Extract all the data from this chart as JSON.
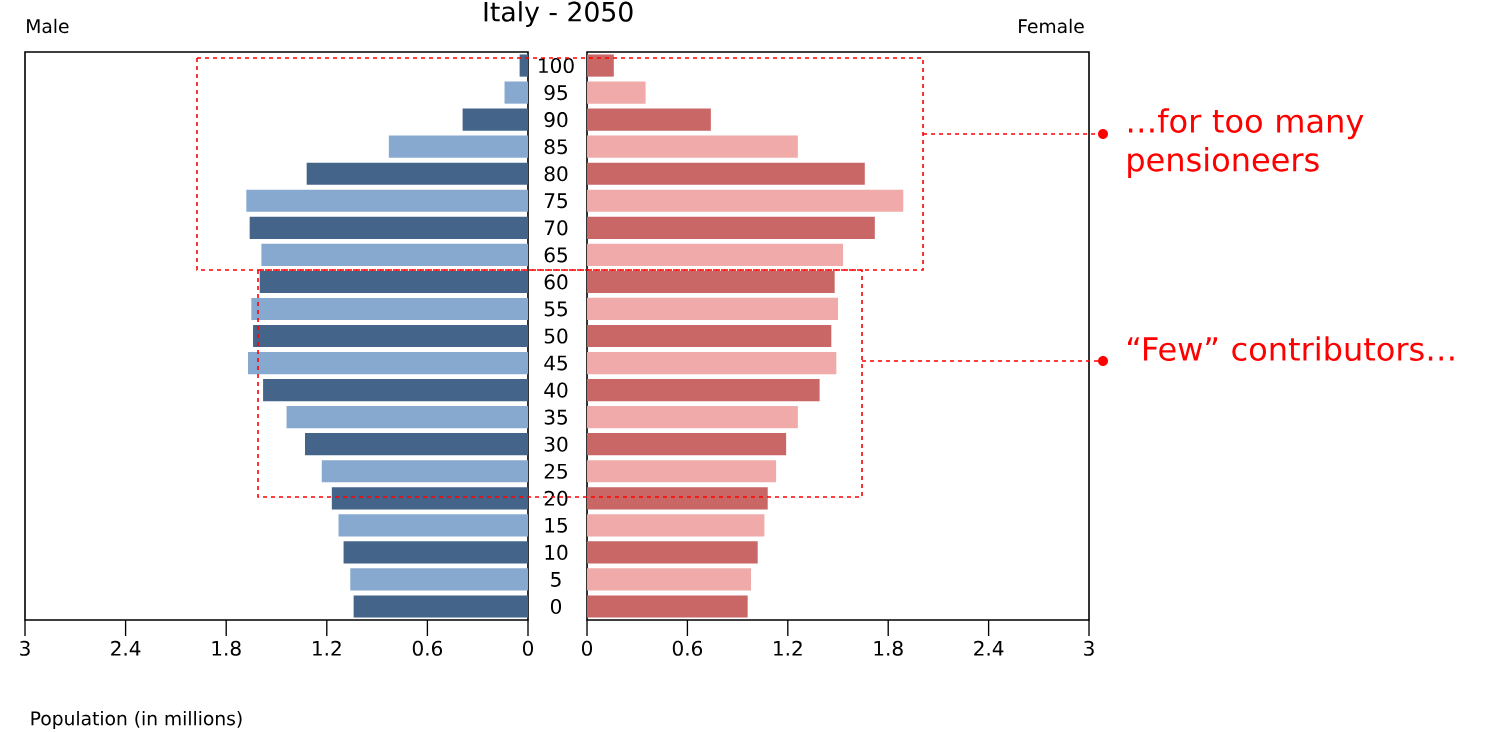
{
  "chart_data": [
    {
      "type": "bar",
      "orientation": "horizontal",
      "title": "Italy - 2050",
      "xlabel": "Population (in millions)",
      "categories": [
        "100",
        "95",
        "90",
        "85",
        "80",
        "75",
        "70",
        "65",
        "60",
        "55",
        "50",
        "45",
        "40",
        "35",
        "30",
        "25",
        "20",
        "15",
        "10",
        "5",
        "0"
      ],
      "series": [
        {
          "name": "Male",
          "colors": [
            "#44648a",
            "#87a9cf",
            "#44648a",
            "#87a9cf",
            "#44648a",
            "#87a9cf",
            "#44648a",
            "#87a9cf",
            "#44648a",
            "#87a9cf",
            "#44648a",
            "#87a9cf",
            "#44648a",
            "#87a9cf",
            "#44648a",
            "#87a9cf",
            "#44648a",
            "#87a9cf",
            "#44648a",
            "#87a9cf",
            "#44648a"
          ],
          "values": [
            0.05,
            0.14,
            0.39,
            0.83,
            1.32,
            1.68,
            1.66,
            1.59,
            1.6,
            1.65,
            1.64,
            1.67,
            1.58,
            1.44,
            1.33,
            1.23,
            1.17,
            1.13,
            1.1,
            1.06,
            1.04
          ]
        }
      ],
      "xlim": [
        3,
        0
      ],
      "xticks": [
        3,
        2.4,
        1.8,
        1.2,
        0.6,
        0
      ]
    },
    {
      "type": "bar",
      "orientation": "horizontal",
      "categories": [
        "100",
        "95",
        "90",
        "85",
        "80",
        "75",
        "70",
        "65",
        "60",
        "55",
        "50",
        "45",
        "40",
        "35",
        "30",
        "25",
        "20",
        "15",
        "10",
        "5",
        "0"
      ],
      "series": [
        {
          "name": "Female",
          "colors": [
            "#c96666",
            "#f0aaaa",
            "#c96666",
            "#f0aaaa",
            "#c96666",
            "#f0aaaa",
            "#c96666",
            "#f0aaaa",
            "#c96666",
            "#f0aaaa",
            "#c96666",
            "#f0aaaa",
            "#c96666",
            "#f0aaaa",
            "#c96666",
            "#f0aaaa",
            "#c96666",
            "#f0aaaa",
            "#c96666",
            "#f0aaaa",
            "#c96666"
          ],
          "values": [
            0.16,
            0.35,
            0.74,
            1.26,
            1.66,
            1.89,
            1.72,
            1.53,
            1.48,
            1.5,
            1.46,
            1.49,
            1.39,
            1.26,
            1.19,
            1.13,
            1.08,
            1.06,
            1.02,
            0.98,
            0.96
          ]
        }
      ],
      "xlim": [
        0,
        3
      ],
      "xticks": [
        0,
        0.6,
        1.2,
        1.8,
        2.4,
        3
      ],
      "tick_labels": "x",
      "annotations": [
        "…for too many pensioneers",
        "“Few” contributors…"
      ]
    }
  ]
}
